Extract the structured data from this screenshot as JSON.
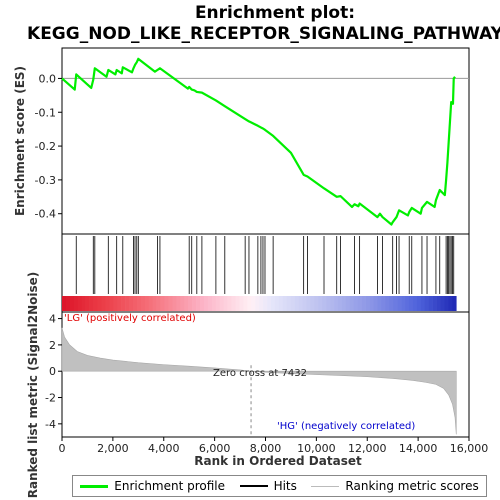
{
  "chart_data": {
    "type": "line",
    "title_line1": "Enrichment plot:",
    "title_line2": "KEGG_NOD_LIKE_RECEPTOR_SIGNALING_PATHWAY",
    "ylabel_top": "Enrichment score (ES)",
    "ylabel_bottom": "Ranked list metric (Signal2Noise)",
    "xlabel": "Rank in Ordered Dataset",
    "xlim": [
      0,
      16000
    ],
    "x_ticks": [
      0,
      2000,
      4000,
      6000,
      8000,
      10000,
      12000,
      14000,
      16000
    ],
    "x_tick_labels": [
      "0",
      "2,000",
      "4,000",
      "6,000",
      "8,000",
      "10,000",
      "12,000",
      "14,000",
      "16,000"
    ],
    "es_ylim": [
      -0.46,
      0.09
    ],
    "es_yticks": [
      0.0,
      -0.1,
      -0.2,
      -0.3,
      -0.4
    ],
    "es_ytick_labels": [
      "0.0",
      "-0.1",
      "-0.2",
      "-0.3",
      "-0.4"
    ],
    "metric_ylim": [
      -5,
      4.5
    ],
    "metric_yticks": [
      4,
      2,
      0,
      -2,
      -4
    ],
    "metric_ytick_labels": [
      "4",
      "2",
      "0",
      "-2",
      "-4"
    ],
    "zero_cross_rank": 7432,
    "zero_cross_label": "Zero cross at 7432",
    "label_pos": "'LG' (positively correlated)",
    "label_neg": "'HG' (negatively correlated)",
    "n_genes": 15500,
    "hits": [
      560,
      1230,
      1290,
      1820,
      2150,
      2390,
      2810,
      2870,
      2940,
      3000,
      3750,
      3850,
      5000,
      5100,
      5300,
      5500,
      6050,
      6400,
      7200,
      7350,
      7700,
      7820,
      7900,
      7980,
      8300,
      9500,
      9650,
      10300,
      10800,
      10950,
      11500,
      11700,
      12400,
      12600,
      13000,
      13150,
      13250,
      13650,
      13750,
      14150,
      14350,
      14700,
      14850,
      15100,
      15150,
      15200,
      15250,
      15300,
      15350,
      15400
    ],
    "es_profile": [
      [
        0,
        0.0
      ],
      [
        500,
        -0.033
      ],
      [
        560,
        0.012
      ],
      [
        1150,
        -0.028
      ],
      [
        1230,
        -0.003
      ],
      [
        1290,
        0.03
      ],
      [
        1750,
        0.005
      ],
      [
        1820,
        0.025
      ],
      [
        2100,
        0.012
      ],
      [
        2150,
        0.025
      ],
      [
        2350,
        0.015
      ],
      [
        2390,
        0.033
      ],
      [
        2750,
        0.018
      ],
      [
        2810,
        0.03
      ],
      [
        2870,
        0.04
      ],
      [
        2940,
        0.048
      ],
      [
        3000,
        0.058
      ],
      [
        3650,
        0.02
      ],
      [
        3750,
        0.025
      ],
      [
        3850,
        0.03
      ],
      [
        4950,
        -0.03
      ],
      [
        5000,
        -0.025
      ],
      [
        5100,
        -0.033
      ],
      [
        5200,
        -0.035
      ],
      [
        5300,
        -0.04
      ],
      [
        5500,
        -0.042
      ],
      [
        6050,
        -0.065
      ],
      [
        6400,
        -0.082
      ],
      [
        7200,
        -0.12
      ],
      [
        7350,
        -0.127
      ],
      [
        7432,
        -0.13
      ],
      [
        7700,
        -0.14
      ],
      [
        7820,
        -0.145
      ],
      [
        7900,
        -0.148
      ],
      [
        7980,
        -0.152
      ],
      [
        8300,
        -0.17
      ],
      [
        9000,
        -0.22
      ],
      [
        9500,
        -0.285
      ],
      [
        9650,
        -0.29
      ],
      [
        10300,
        -0.325
      ],
      [
        10800,
        -0.35
      ],
      [
        10950,
        -0.348
      ],
      [
        11400,
        -0.38
      ],
      [
        11500,
        -0.372
      ],
      [
        11650,
        -0.378
      ],
      [
        11700,
        -0.37
      ],
      [
        12400,
        -0.41
      ],
      [
        12500,
        -0.4
      ],
      [
        12600,
        -0.41
      ],
      [
        12950,
        -0.432
      ],
      [
        13000,
        -0.425
      ],
      [
        13150,
        -0.41
      ],
      [
        13250,
        -0.39
      ],
      [
        13600,
        -0.405
      ],
      [
        13650,
        -0.395
      ],
      [
        13750,
        -0.383
      ],
      [
        14100,
        -0.4
      ],
      [
        14150,
        -0.383
      ],
      [
        14350,
        -0.365
      ],
      [
        14650,
        -0.38
      ],
      [
        14700,
        -0.36
      ],
      [
        14850,
        -0.33
      ],
      [
        15050,
        -0.345
      ],
      [
        15100,
        -0.3
      ],
      [
        15150,
        -0.25
      ],
      [
        15200,
        -0.19
      ],
      [
        15250,
        -0.13
      ],
      [
        15300,
        -0.07
      ],
      [
        15370,
        -0.075
      ],
      [
        15400,
        0.0
      ],
      [
        15450,
        0.005
      ]
    ],
    "metric_profile": [
      [
        0,
        3.3
      ],
      [
        100,
        2.6
      ],
      [
        300,
        2.0
      ],
      [
        600,
        1.5
      ],
      [
        1000,
        1.2
      ],
      [
        1500,
        1.0
      ],
      [
        2000,
        0.85
      ],
      [
        3000,
        0.65
      ],
      [
        4000,
        0.5
      ],
      [
        5000,
        0.38
      ],
      [
        6000,
        0.25
      ],
      [
        7000,
        0.1
      ],
      [
        7432,
        0.0
      ],
      [
        8000,
        -0.08
      ],
      [
        9000,
        -0.18
      ],
      [
        10000,
        -0.26
      ],
      [
        11000,
        -0.33
      ],
      [
        12000,
        -0.42
      ],
      [
        13000,
        -0.55
      ],
      [
        13800,
        -0.7
      ],
      [
        14300,
        -0.85
      ],
      [
        14700,
        -1.0
      ],
      [
        15000,
        -1.3
      ],
      [
        15200,
        -1.8
      ],
      [
        15350,
        -2.5
      ],
      [
        15450,
        -3.5
      ],
      [
        15500,
        -4.8
      ]
    ],
    "colors": {
      "es_line": "#00ee00",
      "hits": "#000000",
      "metric_fill": "#c0c0c0",
      "pos_label": "#e00000",
      "neg_label": "#0000cc",
      "zero_line": "#888888"
    }
  },
  "legend": {
    "items": [
      {
        "label": "Enrichment profile",
        "color": "#00ee00"
      },
      {
        "label": "Hits",
        "color": "#000000"
      },
      {
        "label": "Ranking metric scores",
        "color": "#bbbbbb"
      }
    ]
  }
}
